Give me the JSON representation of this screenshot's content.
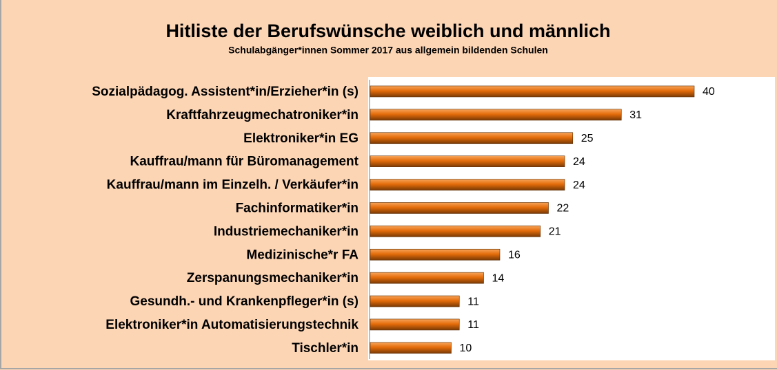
{
  "chart_data": {
    "type": "hbar",
    "title": "Hitliste der Berufswünsche weiblich und männlich",
    "subtitle": "Schulabgänger*innen Sommer 2017 aus allgemein bildenden Schulen",
    "categories": [
      "Sozialpädagog. Assistent*in/Erzieher*in (s)",
      "Kraftfahrzeugmechatroniker*in",
      "Elektroniker*in EG",
      "Kauffrau/mann für Büromanagement",
      "Kauffrau/mann im Einzelh. / Verkäufer*in",
      "Fachinformatiker*in",
      "Industriemechaniker*in",
      "Medizinische*r FA",
      "Zerspanungsmechaniker*in",
      "Gesundh.- und Krankenpfleger*in (s)",
      "Elektroniker*in Automatisierungstechnik",
      "Tischler*in"
    ],
    "values": [
      40,
      31,
      25,
      24,
      24,
      22,
      21,
      16,
      14,
      11,
      11,
      10
    ],
    "color": "#e46c0a"
  }
}
